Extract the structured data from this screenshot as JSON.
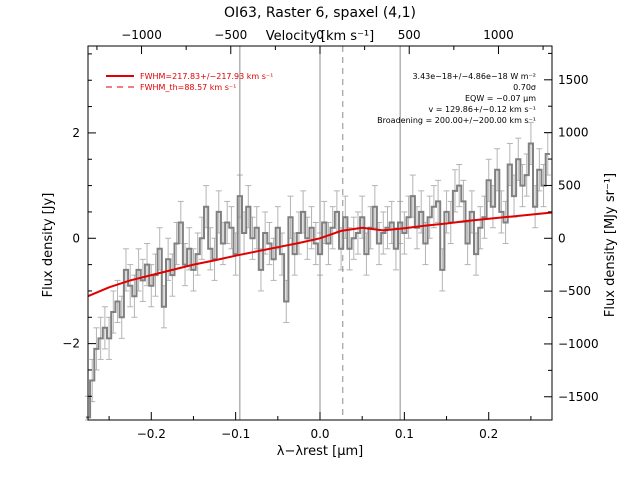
{
  "chart_data": {
    "type": "line",
    "title": "OI63, Raster 6, spaxel (4,1)",
    "xlabel": "λ−λrest [μm]",
    "ylabel": "Flux density [Jy]",
    "top_axis_label": "Velocity [km s⁻¹]",
    "right_axis_label": "Flux density [MJy sr⁻¹]",
    "xlim": [
      -0.275,
      0.275
    ],
    "ylim": [
      -3.45,
      3.65
    ],
    "top_xlim": [
      -1300,
      1300
    ],
    "right_ylim": [
      -1720,
      1820
    ],
    "x_ticks": [
      -0.2,
      -0.1,
      0.0,
      0.1,
      0.2
    ],
    "x_tick_labels": [
      "−0.2",
      "−0.1",
      "0.0",
      "0.1",
      "0.2"
    ],
    "y_ticks": [
      -2,
      0,
      2
    ],
    "y_tick_labels": [
      "−2",
      "0",
      "2"
    ],
    "top_ticks": [
      -1000,
      -500,
      0,
      500,
      1000
    ],
    "top_tick_labels": [
      "−1000",
      "−500",
      "0",
      "500",
      "1000"
    ],
    "right_ticks": [
      -1500,
      -1000,
      -500,
      0,
      500,
      1000,
      1500
    ],
    "right_tick_labels": [
      "−1500",
      "−1000",
      "−500",
      "0",
      "500",
      "1000",
      "1500"
    ],
    "vertical_lines": [
      -0.095,
      0.0,
      0.095
    ],
    "dashed_vertical_line": 0.027,
    "legend": [
      {
        "label": "FWHM=217.83+/−217.93 km s⁻¹",
        "style": "solid"
      },
      {
        "label": "FWHM_th=88.57 km s⁻¹",
        "style": "dashed"
      }
    ],
    "annotations": [
      "3.43e−18+/−4.86e−18 W m⁻²",
      "0.70σ",
      "EQW = −0.07 μm",
      "v = 129.86+/−0.12 km s⁻¹",
      "Broadening = 200.00+/−200.00 km s⁻¹"
    ],
    "colors": {
      "fit": "#e00000",
      "data": "#808080",
      "errorbars": "#b4b4b4",
      "vlines": "#8c8c8c"
    },
    "series": [
      {
        "style": "histogram",
        "x": [
          -0.275,
          -0.27,
          -0.265,
          -0.26,
          -0.255,
          -0.25,
          -0.245,
          -0.24,
          -0.235,
          -0.23,
          -0.225,
          -0.22,
          -0.215,
          -0.21,
          -0.205,
          -0.2,
          -0.195,
          -0.19,
          -0.185,
          -0.18,
          -0.175,
          -0.17,
          -0.165,
          -0.16,
          -0.155,
          -0.15,
          -0.145,
          -0.14,
          -0.135,
          -0.13,
          -0.125,
          -0.12,
          -0.115,
          -0.11,
          -0.105,
          -0.1,
          -0.095,
          -0.09,
          -0.085,
          -0.08,
          -0.075,
          -0.07,
          -0.065,
          -0.06,
          -0.055,
          -0.05,
          -0.045,
          -0.04,
          -0.035,
          -0.03,
          -0.025,
          -0.02,
          -0.015,
          -0.01,
          -0.005,
          0.0,
          0.005,
          0.01,
          0.015,
          0.02,
          0.025,
          0.03,
          0.035,
          0.04,
          0.045,
          0.05,
          0.055,
          0.06,
          0.065,
          0.07,
          0.075,
          0.08,
          0.085,
          0.09,
          0.095,
          0.1,
          0.105,
          0.11,
          0.115,
          0.12,
          0.125,
          0.13,
          0.135,
          0.14,
          0.145,
          0.15,
          0.155,
          0.16,
          0.165,
          0.17,
          0.175,
          0.18,
          0.185,
          0.19,
          0.195,
          0.2,
          0.205,
          0.21,
          0.215,
          0.22,
          0.225,
          0.23,
          0.235,
          0.24,
          0.245,
          0.25,
          0.255,
          0.26,
          0.265,
          0.27
        ],
        "y": [
          -3.4,
          -2.7,
          -2.1,
          -1.9,
          -1.7,
          -1.9,
          -1.4,
          -1.2,
          -1.5,
          -0.6,
          -0.9,
          -1.1,
          -0.6,
          -0.8,
          -0.5,
          -0.9,
          -0.7,
          -0.2,
          -1.3,
          -0.4,
          -0.7,
          -0.1,
          0.3,
          -0.5,
          -0.2,
          -0.6,
          -0.3,
          0.0,
          0.6,
          -0.2,
          -0.4,
          0.5,
          -0.1,
          0.3,
          0.2,
          -0.3,
          0.8,
          0.1,
          0.6,
          0.0,
          0.2,
          -0.6,
          0.1,
          -0.1,
          -0.4,
          0.2,
          -0.3,
          -1.2,
          0.4,
          -0.3,
          0.1,
          0.5,
          0.0,
          0.2,
          -0.1,
          -0.3,
          0.3,
          -0.1,
          0.2,
          0.5,
          -0.2,
          0.4,
          -0.2,
          0.0,
          0.1,
          0.4,
          -0.3,
          0.2,
          0.6,
          -0.1,
          0.1,
          0.2,
          0.3,
          -0.2,
          0.3,
          0.1,
          0.4,
          0.8,
          0.2,
          0.5,
          -0.1,
          0.4,
          0.6,
          0.7,
          -0.6,
          0.5,
          0.3,
          0.9,
          1.0,
          0.7,
          -0.1,
          0.5,
          -0.3,
          0.2,
          0.4,
          1.1,
          0.6,
          1.3,
          0.5,
          0.3,
          1.4,
          0.8,
          1.5,
          1.0,
          1.2,
          1.8,
          0.6,
          1.3,
          1.0,
          1.6
        ],
        "yerr": 0.4
      },
      {
        "style": "line",
        "x": [
          -0.275,
          -0.25,
          -0.225,
          -0.2,
          -0.175,
          -0.15,
          -0.125,
          -0.1,
          -0.075,
          -0.05,
          -0.025,
          0.0,
          0.025,
          0.05,
          0.075,
          0.1,
          0.125,
          0.15,
          0.175,
          0.2,
          0.225,
          0.25,
          0.275
        ],
        "y": [
          -1.1,
          -0.93,
          -0.8,
          -0.7,
          -0.6,
          -0.5,
          -0.42,
          -0.33,
          -0.25,
          -0.17,
          -0.09,
          0.0,
          0.14,
          0.2,
          0.15,
          0.19,
          0.24,
          0.28,
          0.33,
          0.37,
          0.41,
          0.45,
          0.49
        ]
      }
    ]
  }
}
